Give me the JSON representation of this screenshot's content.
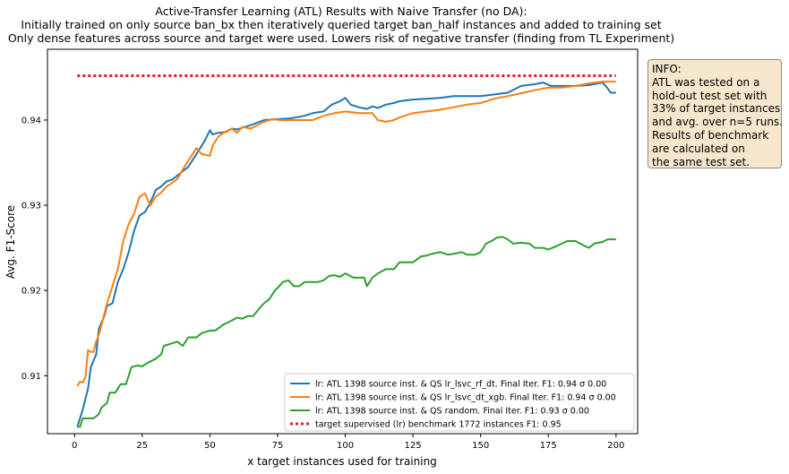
{
  "chart_data": {
    "type": "line",
    "title_lines": [
      "Active-Transfer Learning (ATL) Results with Naive Transfer (no DA):",
      "Initially trained on only source ban_bx then iteratively queried target ban_half instances and added to training set",
      "Only dense features across source and target were used. Lowers risk of negative transfer (finding from TL Experiment)"
    ],
    "xlabel": "x target instances used for training",
    "ylabel": "Avg. F1-Score",
    "xlim": [
      -10,
      208
    ],
    "ylim": [
      0.9032,
      0.9483
    ],
    "xticks": [
      0,
      25,
      50,
      75,
      100,
      125,
      150,
      175,
      200
    ],
    "xtick_labels": [
      "0",
      "25",
      "50",
      "75",
      "100",
      "125",
      "150",
      "175",
      "200"
    ],
    "yticks": [
      0.91,
      0.92,
      0.93,
      0.94
    ],
    "ytick_labels": [
      "0.91",
      "0.92",
      "0.93",
      "0.94"
    ],
    "grid": false,
    "legend_position": "lower-right",
    "series": [
      {
        "name": "lr: ATL 1398 source inst. & QS lr_lsvc_rf_dt. Final Iter. F1: 0.94 σ 0.00",
        "color": "#1f77b4",
        "style": "solid",
        "points": [
          [
            1,
            0.904
          ],
          [
            3,
            0.906
          ],
          [
            5,
            0.9085
          ],
          [
            6,
            0.911
          ],
          [
            8,
            0.9125
          ],
          [
            9,
            0.9155
          ],
          [
            11,
            0.917
          ],
          [
            12,
            0.9182
          ],
          [
            14,
            0.9185
          ],
          [
            16,
            0.921
          ],
          [
            18,
            0.9225
          ],
          [
            20,
            0.9245
          ],
          [
            22,
            0.927
          ],
          [
            24,
            0.9288
          ],
          [
            26,
            0.9292
          ],
          [
            28,
            0.9303
          ],
          [
            30,
            0.9318
          ],
          [
            32,
            0.9322
          ],
          [
            34,
            0.9328
          ],
          [
            36,
            0.933
          ],
          [
            38,
            0.9335
          ],
          [
            40,
            0.934
          ],
          [
            42,
            0.9345
          ],
          [
            44,
            0.9355
          ],
          [
            46,
            0.9365
          ],
          [
            48,
            0.9375
          ],
          [
            50,
            0.9388
          ],
          [
            51,
            0.9383
          ],
          [
            53,
            0.9385
          ],
          [
            56,
            0.9386
          ],
          [
            58,
            0.939
          ],
          [
            60,
            0.9389
          ],
          [
            63,
            0.9392
          ],
          [
            66,
            0.9395
          ],
          [
            70,
            0.94
          ],
          [
            75,
            0.9401
          ],
          [
            80,
            0.9402
          ],
          [
            85,
            0.9405
          ],
          [
            88,
            0.9408
          ],
          [
            92,
            0.941
          ],
          [
            95,
            0.9418
          ],
          [
            98,
            0.9422
          ],
          [
            100,
            0.9426
          ],
          [
            102,
            0.9418
          ],
          [
            105,
            0.9415
          ],
          [
            108,
            0.9413
          ],
          [
            110,
            0.9416
          ],
          [
            112,
            0.9414
          ],
          [
            115,
            0.9418
          ],
          [
            118,
            0.942
          ],
          [
            120,
            0.9422
          ],
          [
            125,
            0.9424
          ],
          [
            130,
            0.9425
          ],
          [
            135,
            0.9426
          ],
          [
            140,
            0.9428
          ],
          [
            145,
            0.9428
          ],
          [
            150,
            0.9428
          ],
          [
            155,
            0.943
          ],
          [
            160,
            0.9432
          ],
          [
            165,
            0.944
          ],
          [
            170,
            0.9442
          ],
          [
            173,
            0.9444
          ],
          [
            176,
            0.944
          ],
          [
            180,
            0.944
          ],
          [
            185,
            0.944
          ],
          [
            190,
            0.9441
          ],
          [
            195,
            0.9444
          ],
          [
            197,
            0.9437
          ],
          [
            198,
            0.9432
          ],
          [
            200,
            0.9432
          ]
        ]
      },
      {
        "name": "lr: ATL 1398 source inst. & QS lr_lsvc_dt_xgb. Final Iter. F1: 0.94 σ 0.00",
        "color": "#ff7f0e",
        "style": "solid",
        "points": [
          [
            1,
            0.9088
          ],
          [
            2,
            0.9093
          ],
          [
            3,
            0.9092
          ],
          [
            4,
            0.9098
          ],
          [
            5,
            0.913
          ],
          [
            6,
            0.9128
          ],
          [
            7,
            0.9128
          ],
          [
            8,
            0.914
          ],
          [
            9,
            0.9148
          ],
          [
            10,
            0.916
          ],
          [
            12,
            0.9185
          ],
          [
            14,
            0.9205
          ],
          [
            16,
            0.9225
          ],
          [
            18,
            0.9258
          ],
          [
            20,
            0.9278
          ],
          [
            22,
            0.929
          ],
          [
            24,
            0.931
          ],
          [
            26,
            0.9314
          ],
          [
            28,
            0.93
          ],
          [
            30,
            0.931
          ],
          [
            32,
            0.9315
          ],
          [
            34,
            0.9322
          ],
          [
            36,
            0.9326
          ],
          [
            38,
            0.9331
          ],
          [
            40,
            0.9342
          ],
          [
            42,
            0.9352
          ],
          [
            44,
            0.9362
          ],
          [
            45,
            0.9367
          ],
          [
            47,
            0.936
          ],
          [
            50,
            0.9358
          ],
          [
            51,
            0.937
          ],
          [
            53,
            0.938
          ],
          [
            55,
            0.9385
          ],
          [
            58,
            0.939
          ],
          [
            60,
            0.9385
          ],
          [
            62,
            0.9392
          ],
          [
            65,
            0.939
          ],
          [
            67,
            0.9393
          ],
          [
            70,
            0.9398
          ],
          [
            73,
            0.9401
          ],
          [
            76,
            0.94
          ],
          [
            80,
            0.94
          ],
          [
            85,
            0.94
          ],
          [
            88,
            0.94
          ],
          [
            92,
            0.9405
          ],
          [
            96,
            0.9408
          ],
          [
            100,
            0.941
          ],
          [
            105,
            0.9408
          ],
          [
            110,
            0.9408
          ],
          [
            112,
            0.94
          ],
          [
            115,
            0.9398
          ],
          [
            118,
            0.94
          ],
          [
            120,
            0.9403
          ],
          [
            125,
            0.9408
          ],
          [
            130,
            0.941
          ],
          [
            135,
            0.9412
          ],
          [
            140,
            0.9415
          ],
          [
            145,
            0.9418
          ],
          [
            150,
            0.942
          ],
          [
            155,
            0.9425
          ],
          [
            160,
            0.9428
          ],
          [
            163,
            0.943
          ],
          [
            167,
            0.9433
          ],
          [
            170,
            0.9435
          ],
          [
            175,
            0.9438
          ],
          [
            180,
            0.9438
          ],
          [
            185,
            0.944
          ],
          [
            190,
            0.9443
          ],
          [
            195,
            0.9445
          ],
          [
            200,
            0.9445
          ]
        ]
      },
      {
        "name": "lr: ATL 1398 source inst. & QS random. Final Iter. F1: 0.93 σ 0.00",
        "color": "#2ca02c",
        "style": "solid",
        "points": [
          [
            1,
            0.904
          ],
          [
            2,
            0.904
          ],
          [
            3,
            0.905
          ],
          [
            5,
            0.905
          ],
          [
            7,
            0.905
          ],
          [
            9,
            0.9055
          ],
          [
            10,
            0.9063
          ],
          [
            12,
            0.9068
          ],
          [
            13,
            0.908
          ],
          [
            15,
            0.908
          ],
          [
            17,
            0.909
          ],
          [
            19,
            0.909
          ],
          [
            21,
            0.911
          ],
          [
            23,
            0.9112
          ],
          [
            25,
            0.9111
          ],
          [
            27,
            0.9115
          ],
          [
            30,
            0.912
          ],
          [
            32,
            0.9125
          ],
          [
            33,
            0.9135
          ],
          [
            36,
            0.9138
          ],
          [
            38,
            0.914
          ],
          [
            40,
            0.9135
          ],
          [
            42,
            0.9145
          ],
          [
            45,
            0.9145
          ],
          [
            47,
            0.915
          ],
          [
            50,
            0.9153
          ],
          [
            52,
            0.9153
          ],
          [
            55,
            0.916
          ],
          [
            57,
            0.9163
          ],
          [
            60,
            0.9168
          ],
          [
            62,
            0.9167
          ],
          [
            64,
            0.917
          ],
          [
            66,
            0.917
          ],
          [
            68,
            0.9178
          ],
          [
            70,
            0.9185
          ],
          [
            72,
            0.919
          ],
          [
            74,
            0.92
          ],
          [
            75,
            0.9203
          ],
          [
            77,
            0.921
          ],
          [
            79,
            0.9212
          ],
          [
            81,
            0.9205
          ],
          [
            83,
            0.9205
          ],
          [
            85,
            0.921
          ],
          [
            88,
            0.921
          ],
          [
            90,
            0.921
          ],
          [
            92,
            0.9212
          ],
          [
            94,
            0.9217
          ],
          [
            96,
            0.9218
          ],
          [
            98,
            0.9216
          ],
          [
            100,
            0.922
          ],
          [
            103,
            0.9215
          ],
          [
            105,
            0.9215
          ],
          [
            107,
            0.9215
          ],
          [
            108,
            0.9205
          ],
          [
            110,
            0.9215
          ],
          [
            112,
            0.922
          ],
          [
            115,
            0.9225
          ],
          [
            118,
            0.9225
          ],
          [
            120,
            0.9233
          ],
          [
            125,
            0.9233
          ],
          [
            128,
            0.924
          ],
          [
            130,
            0.9241
          ],
          [
            132,
            0.9243
          ],
          [
            135,
            0.9245
          ],
          [
            138,
            0.9242
          ],
          [
            140,
            0.9243
          ],
          [
            143,
            0.9245
          ],
          [
            145,
            0.9242
          ],
          [
            148,
            0.9242
          ],
          [
            150,
            0.9245
          ],
          [
            152,
            0.9255
          ],
          [
            154,
            0.9258
          ],
          [
            156,
            0.9262
          ],
          [
            158,
            0.9263
          ],
          [
            160,
            0.926
          ],
          [
            162,
            0.9255
          ],
          [
            165,
            0.9256
          ],
          [
            168,
            0.9255
          ],
          [
            170,
            0.925
          ],
          [
            173,
            0.925
          ],
          [
            175,
            0.9248
          ],
          [
            178,
            0.9252
          ],
          [
            180,
            0.9255
          ],
          [
            182,
            0.9258
          ],
          [
            185,
            0.9258
          ],
          [
            188,
            0.9253
          ],
          [
            190,
            0.925
          ],
          [
            192,
            0.9255
          ],
          [
            195,
            0.9257
          ],
          [
            197,
            0.926
          ],
          [
            200,
            0.926
          ]
        ]
      },
      {
        "name": "target supervised (lr) benchmark 1772 instances F1: 0.95",
        "color": "#d62728",
        "style": "dotted",
        "points": [
          [
            1,
            0.9452
          ],
          [
            200,
            0.9452
          ]
        ]
      }
    ]
  },
  "info_box": {
    "lines": [
      "INFO:",
      "ATL was tested on a",
      "hold-out test set with",
      "33% of target instances",
      "and avg. over n=5 runs.",
      "Results of benchmark",
      "are calculated on",
      "the same test set."
    ]
  }
}
